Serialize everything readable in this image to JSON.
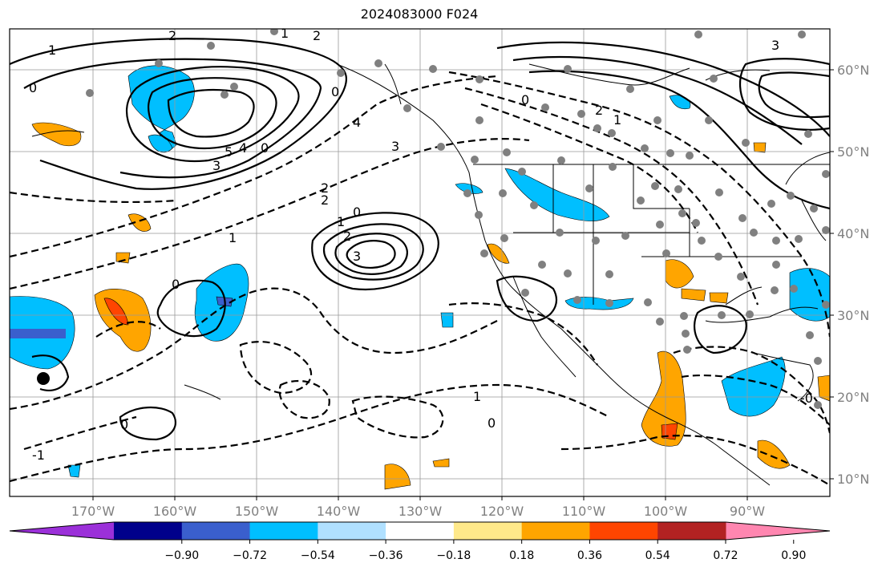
{
  "title": "2024083000 F024",
  "map": {
    "lat_labels": [
      "60°N",
      "50°N",
      "40°N",
      "30°N",
      "20°N",
      "10°N"
    ],
    "lon_labels": [
      "170°W",
      "160°W",
      "150°W",
      "140°W",
      "130°W",
      "120°W",
      "110°W",
      "100°W",
      "90°W"
    ],
    "contour_labels": [
      "0",
      "1",
      "2",
      "3",
      "4",
      "5",
      "0",
      "1",
      "2",
      "3",
      "0",
      "1",
      "2",
      "0",
      "1",
      "2",
      "3",
      "4",
      "0",
      "1",
      "2",
      "3",
      "0",
      "1",
      "2",
      "0",
      "-1",
      "-0",
      "0"
    ]
  },
  "colorbar": {
    "ticks": [
      "−0.90",
      "−0.72",
      "−0.54",
      "−0.36",
      "−0.18",
      "0.18",
      "0.36",
      "0.54",
      "0.72",
      "0.90"
    ],
    "colors": [
      "#9b30d9",
      "#00008b",
      "#3a5fcd",
      "#00bfff",
      "#b0e0ff",
      "#ffffff",
      "#ffe98a",
      "#ffa500",
      "#ff4500",
      "#b22222",
      "#ff86b0"
    ]
  }
}
